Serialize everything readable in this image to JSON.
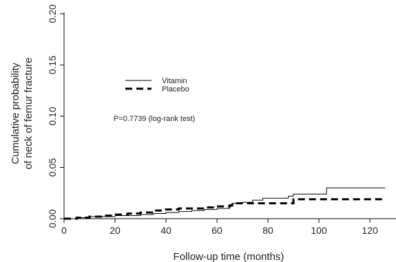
{
  "chart_data": {
    "type": "line",
    "title": "",
    "xlabel": "Follow-up time (months)",
    "ylabel_lines": [
      "Cumulative probability",
      "of neck of femur fracture"
    ],
    "xlim": [
      0,
      127
    ],
    "ylim": [
      0,
      0.2
    ],
    "xticks": [
      0,
      20,
      40,
      60,
      80,
      100,
      120
    ],
    "yticks": [
      "0.00",
      "0.05",
      "0.10",
      "0.15",
      "0.20"
    ],
    "grid": false,
    "legend_position": "upper-left",
    "annotation": "P=0.7739 (log-rank test)",
    "series": [
      {
        "name": "Vitamin",
        "style": "solid",
        "color": "#000000",
        "x": [
          0,
          5,
          10,
          15,
          20,
          25,
          30,
          35,
          40,
          45,
          50,
          55,
          60,
          64,
          65,
          66,
          70,
          74,
          78,
          88,
          90,
          102,
          103,
          126
        ],
        "y": [
          0.0,
          0.001,
          0.002,
          0.002,
          0.003,
          0.003,
          0.004,
          0.005,
          0.006,
          0.007,
          0.008,
          0.009,
          0.01,
          0.01,
          0.012,
          0.015,
          0.016,
          0.018,
          0.02,
          0.022,
          0.024,
          0.024,
          0.03,
          0.03
        ]
      },
      {
        "name": "Placebo",
        "style": "dashed",
        "color": "#000000",
        "x": [
          0,
          5,
          10,
          15,
          20,
          25,
          30,
          35,
          40,
          45,
          50,
          55,
          60,
          65,
          66,
          70,
          80,
          90,
          126
        ],
        "y": [
          0.0,
          0.001,
          0.002,
          0.003,
          0.004,
          0.005,
          0.006,
          0.008,
          0.009,
          0.01,
          0.01,
          0.011,
          0.012,
          0.013,
          0.015,
          0.015,
          0.015,
          0.019,
          0.019
        ]
      }
    ]
  }
}
